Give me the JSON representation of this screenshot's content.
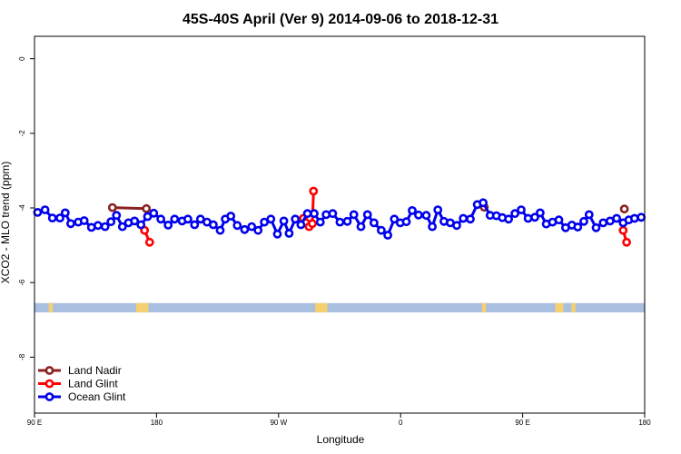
{
  "chart_data": {
    "type": "line",
    "title": "45S-40S April (Ver 9)   2014-09-06 to 2018-12-31",
    "xlabel": "Longitude",
    "ylabel": "XCO2 - MLO trend (ppm)",
    "xlim": [
      -60,
      240
    ],
    "ylim": [
      -9.5,
      0.6
    ],
    "x_ticks": [
      {
        "value": -60,
        "label": "90 E"
      },
      {
        "value": 0,
        "label": "180"
      },
      {
        "value": 60,
        "label": "90 W"
      },
      {
        "value": 120,
        "label": "0"
      },
      {
        "value": 180,
        "label": "90 E"
      },
      {
        "value": 240,
        "label": "180"
      }
    ],
    "y_ticks": [
      0,
      -2,
      -4,
      -6,
      -8
    ],
    "grid": false,
    "legend_position": "bottom-left",
    "surface_band": {
      "y_min": -6.8,
      "y_max": -6.55,
      "ocean_color": "#a9bfe0",
      "land_color": "#f5d070"
    },
    "land_segments": [
      [
        -53,
        -51
      ],
      [
        -10,
        -4
      ],
      [
        78,
        84
      ],
      [
        160,
        162
      ],
      [
        196,
        200
      ],
      [
        204,
        206
      ]
    ],
    "series": [
      {
        "name": "Land Nadir",
        "color": "#8b2020",
        "segments": [
          [
            {
              "x": -21.7,
              "y": -3.99
            },
            {
              "x": -5.0,
              "y": -4.02
            }
          ],
          [
            {
              "x": 161.1,
              "y": -3.98
            }
          ],
          [
            {
              "x": 230.0,
              "y": -4.03
            }
          ]
        ]
      },
      {
        "name": "Land Glint",
        "color": "#ff0000",
        "segments": [
          [
            {
              "x": -5.9,
              "y": -4.6
            },
            {
              "x": -3.4,
              "y": -4.92
            }
          ],
          [
            {
              "x": 72.2,
              "y": -4.28
            },
            {
              "x": 73.4,
              "y": -4.4
            },
            {
              "x": 75.0,
              "y": -4.5
            },
            {
              "x": 76.6,
              "y": -4.42
            },
            {
              "x": 77.2,
              "y": -3.55
            }
          ],
          [
            {
              "x": 229.4,
              "y": -4.6
            },
            {
              "x": 231.1,
              "y": -4.92
            }
          ]
        ]
      },
      {
        "name": "Ocean Glint",
        "color": "#0000ee",
        "segments": [
          [
            {
              "x": -58.5,
              "y": -4.12
            },
            {
              "x": -54.8,
              "y": -4.05
            },
            {
              "x": -51.2,
              "y": -4.27
            },
            {
              "x": -47.5,
              "y": -4.27
            },
            {
              "x": -44.9,
              "y": -4.13
            },
            {
              "x": -42.2,
              "y": -4.42
            },
            {
              "x": -38.5,
              "y": -4.38
            },
            {
              "x": -35.6,
              "y": -4.34
            },
            {
              "x": -32.0,
              "y": -4.52
            },
            {
              "x": -28.8,
              "y": -4.47
            },
            {
              "x": -25.3,
              "y": -4.5
            },
            {
              "x": -22.4,
              "y": -4.37
            },
            {
              "x": -19.7,
              "y": -4.2
            },
            {
              "x": -16.8,
              "y": -4.5
            },
            {
              "x": -13.8,
              "y": -4.4
            },
            {
              "x": -10.8,
              "y": -4.35
            },
            {
              "x": -7.7,
              "y": -4.45
            },
            {
              "x": -4.4,
              "y": -4.23
            },
            {
              "x": -1.4,
              "y": -4.14
            },
            {
              "x": 2.1,
              "y": -4.3
            },
            {
              "x": 5.7,
              "y": -4.46
            },
            {
              "x": 8.9,
              "y": -4.3
            },
            {
              "x": 12.6,
              "y": -4.35
            },
            {
              "x": 15.4,
              "y": -4.3
            },
            {
              "x": 18.7,
              "y": -4.45
            },
            {
              "x": 21.6,
              "y": -4.3
            },
            {
              "x": 24.8,
              "y": -4.38
            },
            {
              "x": 27.9,
              "y": -4.45
            },
            {
              "x": 31.3,
              "y": -4.6
            },
            {
              "x": 33.8,
              "y": -4.3
            },
            {
              "x": 36.5,
              "y": -4.22
            },
            {
              "x": 39.7,
              "y": -4.47
            },
            {
              "x": 43.3,
              "y": -4.58
            },
            {
              "x": 46.8,
              "y": -4.5
            },
            {
              "x": 49.9,
              "y": -4.6
            },
            {
              "x": 53.0,
              "y": -4.38
            },
            {
              "x": 56.2,
              "y": -4.3
            },
            {
              "x": 59.4,
              "y": -4.7
            },
            {
              "x": 62.6,
              "y": -4.35
            },
            {
              "x": 65.2,
              "y": -4.68
            },
            {
              "x": 68.2,
              "y": -4.3
            },
            {
              "x": 71.0,
              "y": -4.45
            },
            {
              "x": 74.2,
              "y": -4.15
            },
            {
              "x": 77.5,
              "y": -4.15
            },
            {
              "x": 80.5,
              "y": -4.38
            },
            {
              "x": 83.4,
              "y": -4.18
            },
            {
              "x": 86.6,
              "y": -4.15
            },
            {
              "x": 90.2,
              "y": -4.38
            },
            {
              "x": 93.8,
              "y": -4.36
            },
            {
              "x": 97.0,
              "y": -4.18
            },
            {
              "x": 100.5,
              "y": -4.5
            },
            {
              "x": 103.7,
              "y": -4.18
            },
            {
              "x": 106.9,
              "y": -4.4
            },
            {
              "x": 110.5,
              "y": -4.6
            },
            {
              "x": 113.7,
              "y": -4.73
            },
            {
              "x": 116.9,
              "y": -4.3
            },
            {
              "x": 119.8,
              "y": -4.4
            },
            {
              "x": 122.8,
              "y": -4.37
            },
            {
              "x": 125.7,
              "y": -4.07
            },
            {
              "x": 128.8,
              "y": -4.19
            },
            {
              "x": 132.6,
              "y": -4.2
            },
            {
              "x": 135.6,
              "y": -4.5
            },
            {
              "x": 138.3,
              "y": -4.05
            },
            {
              "x": 141.3,
              "y": -4.36
            },
            {
              "x": 144.4,
              "y": -4.4
            },
            {
              "x": 147.6,
              "y": -4.47
            },
            {
              "x": 150.8,
              "y": -4.28
            },
            {
              "x": 154.3,
              "y": -4.3
            },
            {
              "x": 157.7,
              "y": -3.91
            },
            {
              "x": 160.6,
              "y": -3.86
            },
            {
              "x": 164.0,
              "y": -4.2
            },
            {
              "x": 167.1,
              "y": -4.21
            },
            {
              "x": 170.0,
              "y": -4.26
            },
            {
              "x": 173.1,
              "y": -4.3
            },
            {
              "x": 176.2,
              "y": -4.15
            },
            {
              "x": 179.3,
              "y": -4.05
            },
            {
              "x": 182.7,
              "y": -4.28
            },
            {
              "x": 186.0,
              "y": -4.25
            },
            {
              "x": 188.6,
              "y": -4.13
            },
            {
              "x": 191.6,
              "y": -4.43
            },
            {
              "x": 194.7,
              "y": -4.38
            },
            {
              "x": 197.8,
              "y": -4.32
            },
            {
              "x": 201.1,
              "y": -4.53
            },
            {
              "x": 204.2,
              "y": -4.46
            },
            {
              "x": 207.1,
              "y": -4.51
            },
            {
              "x": 210.1,
              "y": -4.36
            },
            {
              "x": 212.7,
              "y": -4.18
            },
            {
              "x": 216.1,
              "y": -4.53
            },
            {
              "x": 219.6,
              "y": -4.4
            },
            {
              "x": 223.0,
              "y": -4.35
            },
            {
              "x": 226.2,
              "y": -4.28
            },
            {
              "x": 229.4,
              "y": -4.4
            },
            {
              "x": 232.2,
              "y": -4.32
            },
            {
              "x": 235.0,
              "y": -4.28
            },
            {
              "x": 238.3,
              "y": -4.25
            }
          ]
        ]
      }
    ]
  }
}
